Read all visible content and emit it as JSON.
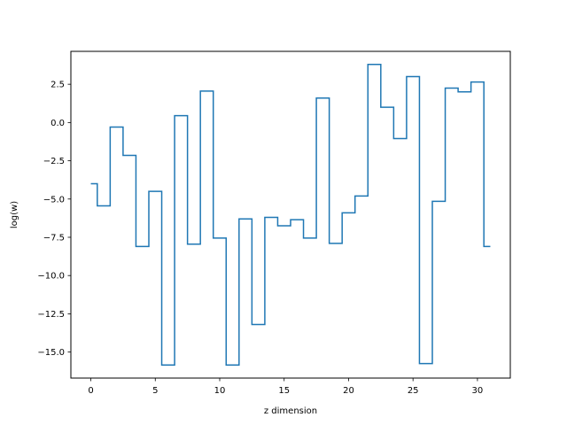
{
  "chart_data": {
    "type": "line",
    "drawstyle": "steps-mid",
    "title": "",
    "xlabel": "z dimension",
    "ylabel": "log(w)",
    "xlim": [
      -1.55,
      32.55
    ],
    "ylim": [
      -16.7,
      4.65
    ],
    "xticks": [
      0,
      5,
      10,
      15,
      20,
      25,
      30
    ],
    "yticks": [
      2.5,
      0.0,
      -2.5,
      -5.0,
      -7.5,
      -10.0,
      -12.5,
      -15.0
    ],
    "ytick_labels": [
      "2.5",
      "0.0",
      "−2.5",
      "−5.0",
      "−7.5",
      "−10.0",
      "−12.5",
      "−15.0"
    ],
    "grid": false,
    "series": [
      {
        "color": "#1f77b4",
        "x": [
          0,
          1,
          2,
          3,
          4,
          5,
          6,
          7,
          8,
          9,
          10,
          11,
          12,
          13,
          14,
          15,
          16,
          17,
          18,
          19,
          20,
          21,
          22,
          23,
          24,
          25,
          26,
          27,
          28,
          29,
          30,
          31
        ],
        "y": [
          -4.0,
          -5.45,
          -0.3,
          -2.15,
          -8.1,
          -4.5,
          -15.85,
          0.45,
          -7.95,
          2.05,
          -7.55,
          -15.85,
          -6.3,
          -13.2,
          -6.2,
          -6.75,
          -6.35,
          -7.55,
          1.6,
          -7.9,
          -5.9,
          -4.8,
          3.8,
          1.0,
          -1.05,
          3.0,
          -15.75,
          -5.15,
          2.25,
          2.0,
          2.65,
          -8.1
        ]
      }
    ]
  }
}
